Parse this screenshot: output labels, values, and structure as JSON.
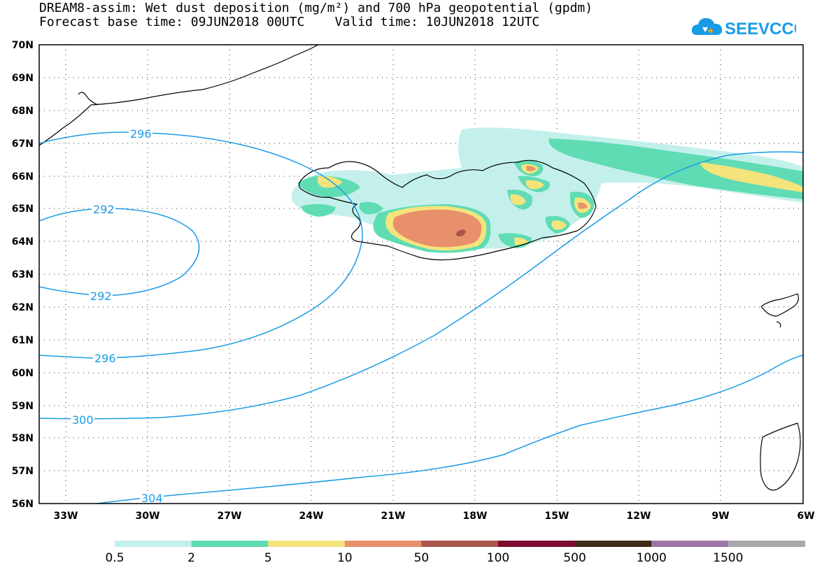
{
  "title": {
    "line1": "DREAM8-assim: Wet dust deposition (mg/m²) and 700 hPa geopotential (gpdm)",
    "line2": "Forecast base time: 09JUN2018 00UTC    Valid time: 10JUN2018 12UTC"
  },
  "logo": {
    "text": "SEEVCCC",
    "icon": "cloud-icon",
    "color": "#1a9be6"
  },
  "axes": {
    "lat_labels": [
      "70N",
      "69N",
      "68N",
      "67N",
      "66N",
      "65N",
      "64N",
      "63N",
      "62N",
      "61N",
      "60N",
      "59N",
      "58N",
      "57N",
      "56N"
    ],
    "lon_labels": [
      "33W",
      "30W",
      "27W",
      "24W",
      "21W",
      "18W",
      "15W",
      "12W",
      "9W",
      "6W"
    ]
  },
  "contours": {
    "color": "#1a9be6",
    "labels": [
      "296",
      "292",
      "292",
      "296",
      "300",
      "304"
    ]
  },
  "colorbar": {
    "colors": [
      "#c4f0ec",
      "#5fdcb4",
      "#f4e47c",
      "#e88f6c",
      "#a8554a",
      "#7e0c2e",
      "#3c2a18",
      "#9c74a8",
      "#a8a8a8"
    ],
    "labels": [
      "0.5",
      "2",
      "5",
      "10",
      "50",
      "100",
      "500",
      "1000",
      "1500"
    ]
  }
}
